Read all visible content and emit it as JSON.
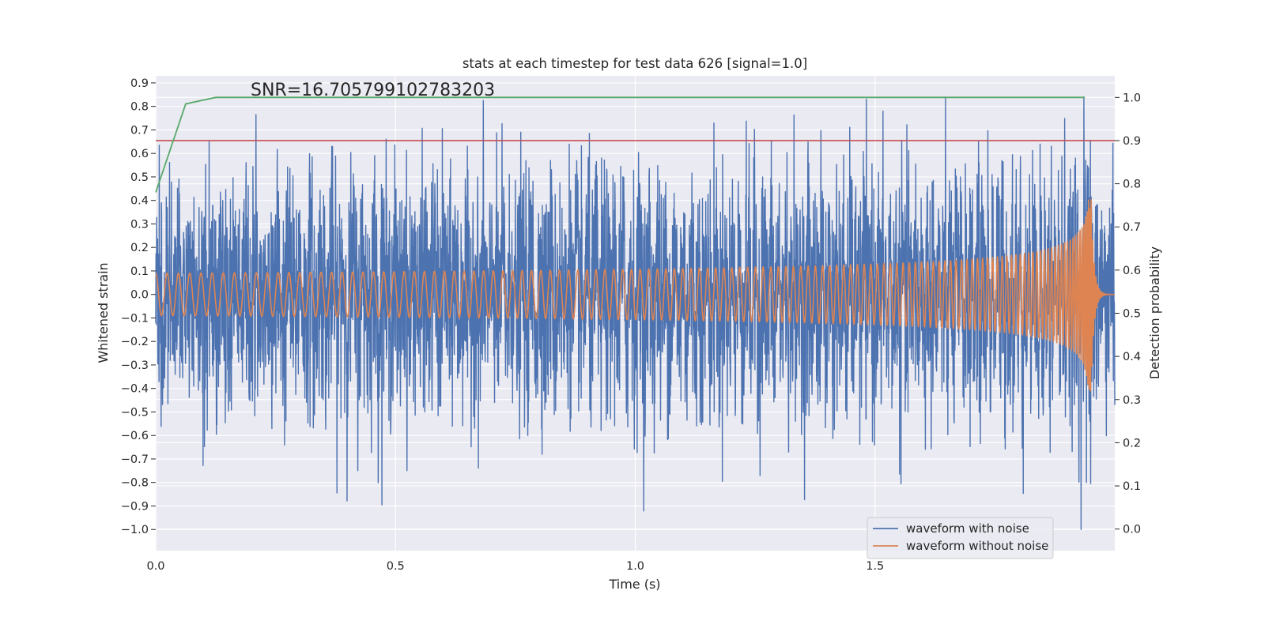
{
  "chart_data": {
    "type": "line",
    "title": "stats at each timestep for test data 626 [signal=1.0]",
    "xlabel": "Time (s)",
    "ylabel": "Whitened strain",
    "y2label": "Detection probability",
    "xlim": [
      0.0,
      2.0
    ],
    "ylim": [
      -1.09,
      0.93
    ],
    "y2lim": [
      -0.05,
      1.05
    ],
    "xticks": [
      "0.0",
      "0.5",
      "1.0",
      "1.5"
    ],
    "yticks": [
      "0.9",
      "0.8",
      "0.7",
      "0.6",
      "0.5",
      "0.4",
      "0.3",
      "0.2",
      "0.1",
      "0.0",
      "−0.1",
      "−0.2",
      "−0.3",
      "−0.4",
      "−0.5",
      "−0.6",
      "−0.7",
      "−0.8",
      "−0.9",
      "−1.0"
    ],
    "y2ticks": [
      "1.0",
      "0.9",
      "0.8",
      "0.7",
      "0.6",
      "0.5",
      "0.4",
      "0.3",
      "0.2",
      "0.1",
      "0.0"
    ],
    "annotation": "SNR=16.705799102783203",
    "threshold": 0.9,
    "series": [
      {
        "name": "waveform with noise",
        "color": "#4c72b0",
        "axis": "left",
        "amplitude_rms": 0.25,
        "peak_min": -1.0,
        "peak_max": 0.84
      },
      {
        "name": "waveform without noise",
        "color": "#dd8452",
        "axis": "left",
        "t_merger": 1.95,
        "start_amplitude": 0.09,
        "peak_amplitude": 0.46
      },
      {
        "name": "detection probability",
        "color": "#55a868",
        "axis": "right",
        "x": [
          0.0,
          0.0625,
          0.125,
          0.25,
          0.5,
          1.0,
          1.5,
          1.9375
        ],
        "values": [
          0.78,
          0.985,
          1.0,
          1.0,
          1.0,
          1.0,
          1.0,
          1.0
        ]
      },
      {
        "name": "threshold",
        "color": "#c44e52",
        "axis": "right",
        "x": [
          0.0,
          2.0
        ],
        "values": [
          0.9,
          0.9
        ]
      }
    ],
    "legend": {
      "location": "lower-right",
      "entries": [
        "waveform with noise",
        "waveform without noise"
      ]
    },
    "grid": true
  }
}
